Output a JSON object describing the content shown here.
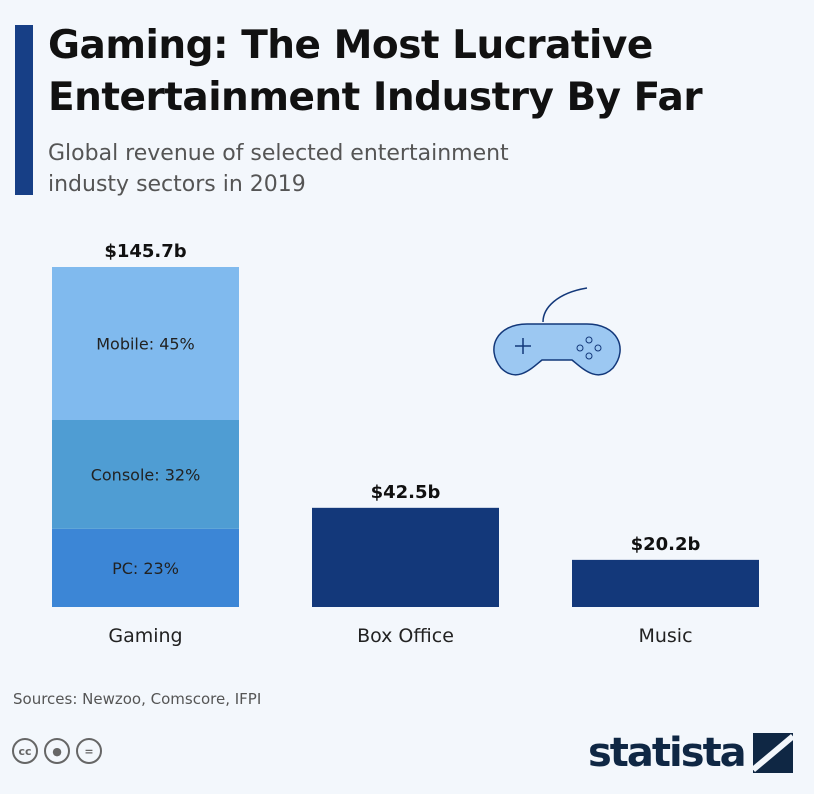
{
  "title_line1": "Gaming: The Most Lucrative",
  "title_line2": "Entertainment Industry By Far",
  "subtitle_line1": "Global revenue of selected entertainment",
  "subtitle_line2": "industy sectors in 2019",
  "source": "Sources: Newzoo, Comscore, IFPI",
  "license_icons": [
    "cc",
    "by",
    "nd"
  ],
  "license_labels": {
    "cc": "cc",
    "nd": "="
  },
  "logo": "statista",
  "colors": {
    "mobile": "#80baee",
    "console": "#4f9dd3",
    "pc": "#3c86d6",
    "other": "#13387a",
    "accent": "#173f86"
  },
  "chart_data": {
    "type": "bar",
    "title": "Gaming: The Most Lucrative Entertainment Industry By Far",
    "categories": [
      "Gaming",
      "Box Office",
      "Music"
    ],
    "values": [
      145.7,
      42.5,
      20.2
    ],
    "value_labels": [
      "$145.7b",
      "$42.5b",
      "$20.2b"
    ],
    "unit": "billion USD",
    "ylim": [
      0,
      145.7
    ],
    "gaming_breakdown": [
      {
        "name": "PC",
        "percent": 23,
        "label": "PC: 23%"
      },
      {
        "name": "Console",
        "percent": 32,
        "label": "Console: 32%"
      },
      {
        "name": "Mobile",
        "percent": 45,
        "label": "Mobile: 45%"
      }
    ],
    "grid": false
  }
}
